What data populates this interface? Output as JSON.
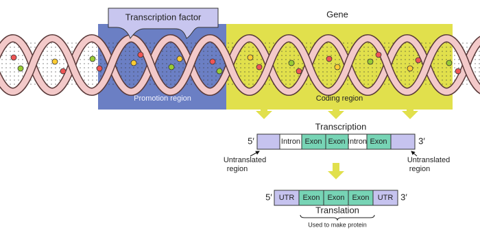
{
  "gene_label": "Gene",
  "transcription_factor": "Transcription factor",
  "regions": [
    "Promotion region",
    "Coding region"
  ],
  "transcription": {
    "title": "Transcription",
    "five_prime": "5′",
    "three_prime": "3′",
    "segments": [
      "Intron",
      "Exon",
      "Exon",
      "Intron",
      "Exon"
    ],
    "untranslated_left": [
      "Untranslated",
      "region"
    ],
    "untranslated_right": [
      "Untranslated",
      "region"
    ]
  },
  "translation": {
    "title": "Translation",
    "note": "Used to make protein",
    "five_prime": "5′",
    "three_prime": "3′",
    "segments": [
      "UTR",
      "Exon",
      "Exon",
      "Exon",
      "UTR"
    ]
  }
}
